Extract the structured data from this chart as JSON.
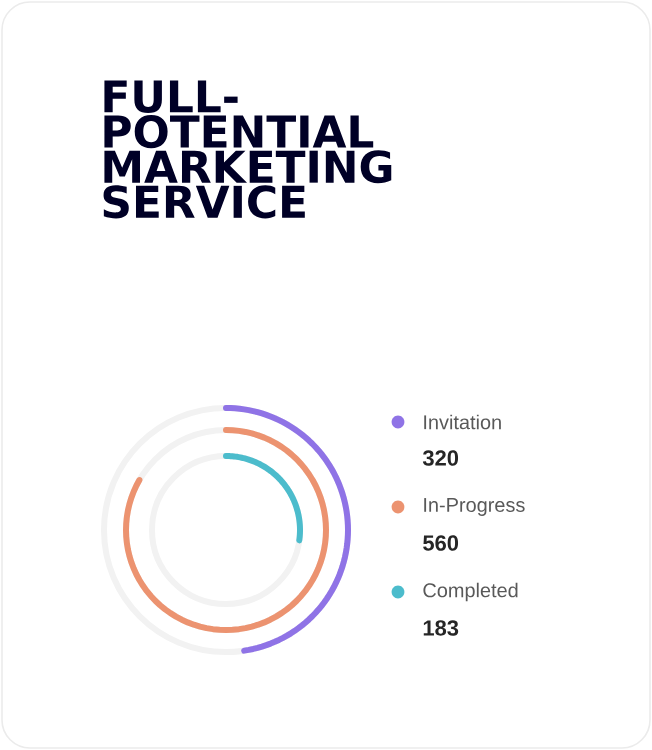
{
  "chart_data": {
    "type": "other",
    "title": "FULL-POTENTIAL MARKETING SERVICE",
    "series": [
      {
        "name": "Invitation",
        "color": "#8f73e6",
        "values": [
          320
        ],
        "value_labels": [
          "320"
        ]
      },
      {
        "name": "In-Progress",
        "color": "#ec9370",
        "values": [
          560
        ],
        "value_labels": [
          "560"
        ]
      },
      {
        "name": "Completed",
        "color": "#4cbccc",
        "values": [
          183
        ],
        "value_labels": [
          "183"
        ]
      }
    ],
    "data_labels": true,
    "legend": "right"
  }
}
